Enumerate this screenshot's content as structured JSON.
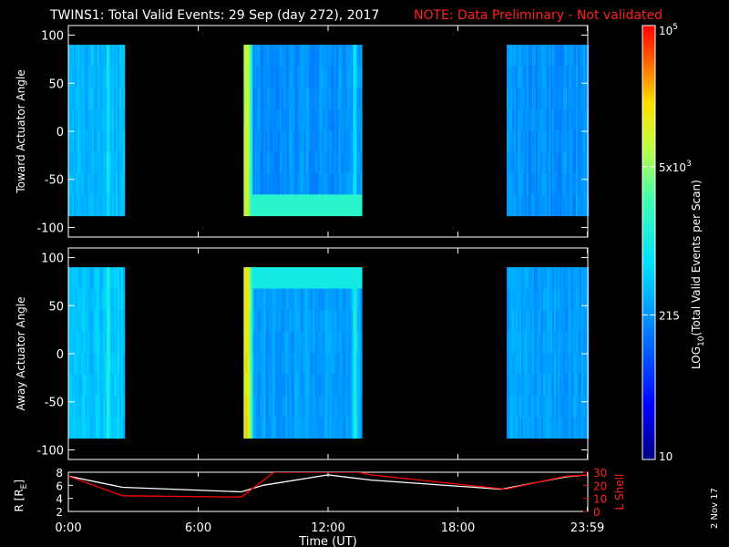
{
  "header": {
    "title": "TWINS1: Total Valid Events: 29 Sep (day 272), 2017",
    "note": "NOTE: Data Preliminary - Not validated"
  },
  "footer": {
    "date_stamp": "2 Nov 17"
  },
  "colors": {
    "background": "#000000",
    "axis": "#ffffff",
    "note": "#ff2020",
    "lshell": "#ff0000",
    "range": "#ffffff"
  },
  "chart_data": [
    {
      "type": "heatmap",
      "name": "toward",
      "ylabel": "Toward Actuator Angle",
      "ylim": [
        -110,
        110
      ],
      "yticks": [
        100,
        50,
        0,
        -50,
        -100
      ],
      "ytick_labels": [
        "100",
        "50",
        "0",
        "-50",
        "-100"
      ],
      "xlim": [
        0,
        24
      ],
      "y_extent": [
        -88,
        90
      ],
      "data_intervals_hours": [
        [
          0.0,
          2.55
        ],
        [
          8.1,
          13.55
        ],
        [
          20.25,
          23.99
        ]
      ],
      "typical_log_level": 0.33,
      "bright_features": [
        {
          "x": 1.8,
          "level": 0.45
        },
        {
          "x": 8.2,
          "level": 0.8
        },
        {
          "x": 13.2,
          "level": 0.5
        }
      ]
    },
    {
      "type": "heatmap",
      "name": "away",
      "ylabel": "Away Actuator Angle",
      "ylim": [
        -110,
        110
      ],
      "yticks": [
        100,
        50,
        0,
        -50,
        -100
      ],
      "ytick_labels": [
        "100",
        "50",
        "0",
        "-50",
        "-100"
      ],
      "xlim": [
        0,
        24
      ],
      "y_extent": [
        -88,
        90
      ],
      "data_intervals_hours": [
        [
          0.0,
          2.55
        ],
        [
          8.1,
          13.55
        ],
        [
          20.25,
          23.99
        ]
      ],
      "typical_log_level": 0.35,
      "bright_features": [
        {
          "x": 1.8,
          "level": 0.5
        },
        {
          "x": 8.2,
          "level": 0.85
        },
        {
          "x": 13.2,
          "level": 0.55
        }
      ]
    },
    {
      "type": "line",
      "name": "ephemeris",
      "xlabel": "Time (UT)",
      "xlim": [
        0,
        24
      ],
      "xticks": [
        0,
        6,
        12,
        18,
        23.983
      ],
      "xtick_labels": [
        "0:00",
        "6:00",
        "12:00",
        "18:00",
        "23:59"
      ],
      "left_axis": {
        "label": "R [R",
        "label_sub": "E",
        "label_close": "]",
        "ylim": [
          2,
          8
        ],
        "ticks": [
          8,
          6,
          4,
          2
        ]
      },
      "right_axis": {
        "label": "L Shell",
        "ylim": [
          0,
          30
        ],
        "ticks": [
          30,
          20,
          10,
          0
        ]
      },
      "series": [
        {
          "axis": "left",
          "x": [
            0,
            2.5,
            8,
            9,
            12,
            14,
            20,
            23,
            23.99
          ],
          "y": [
            7.4,
            5.7,
            5.0,
            6.0,
            7.6,
            6.8,
            5.4,
            7.3,
            7.6
          ]
        },
        {
          "axis": "right",
          "x": [
            0,
            2.5,
            8,
            9.5,
            13.4,
            14,
            20.2,
            23,
            23.99
          ],
          "y": [
            27,
            12,
            11,
            30,
            30,
            28,
            17,
            27,
            28
          ]
        }
      ]
    }
  ],
  "colorbar": {
    "label": "LOG",
    "label_sub": "10",
    "label_rest": "(Total Valid Events per Scan)",
    "tick_labels": [
      {
        "value": 10,
        "main": "10",
        "exp": ""
      },
      {
        "value": 215,
        "main": "215",
        "exp": ""
      },
      {
        "value": 5000,
        "main": "5x10",
        "exp": "3"
      },
      {
        "value": 100000,
        "main": "10",
        "exp": "5"
      }
    ],
    "range": [
      10,
      100000
    ],
    "scale": "log"
  }
}
